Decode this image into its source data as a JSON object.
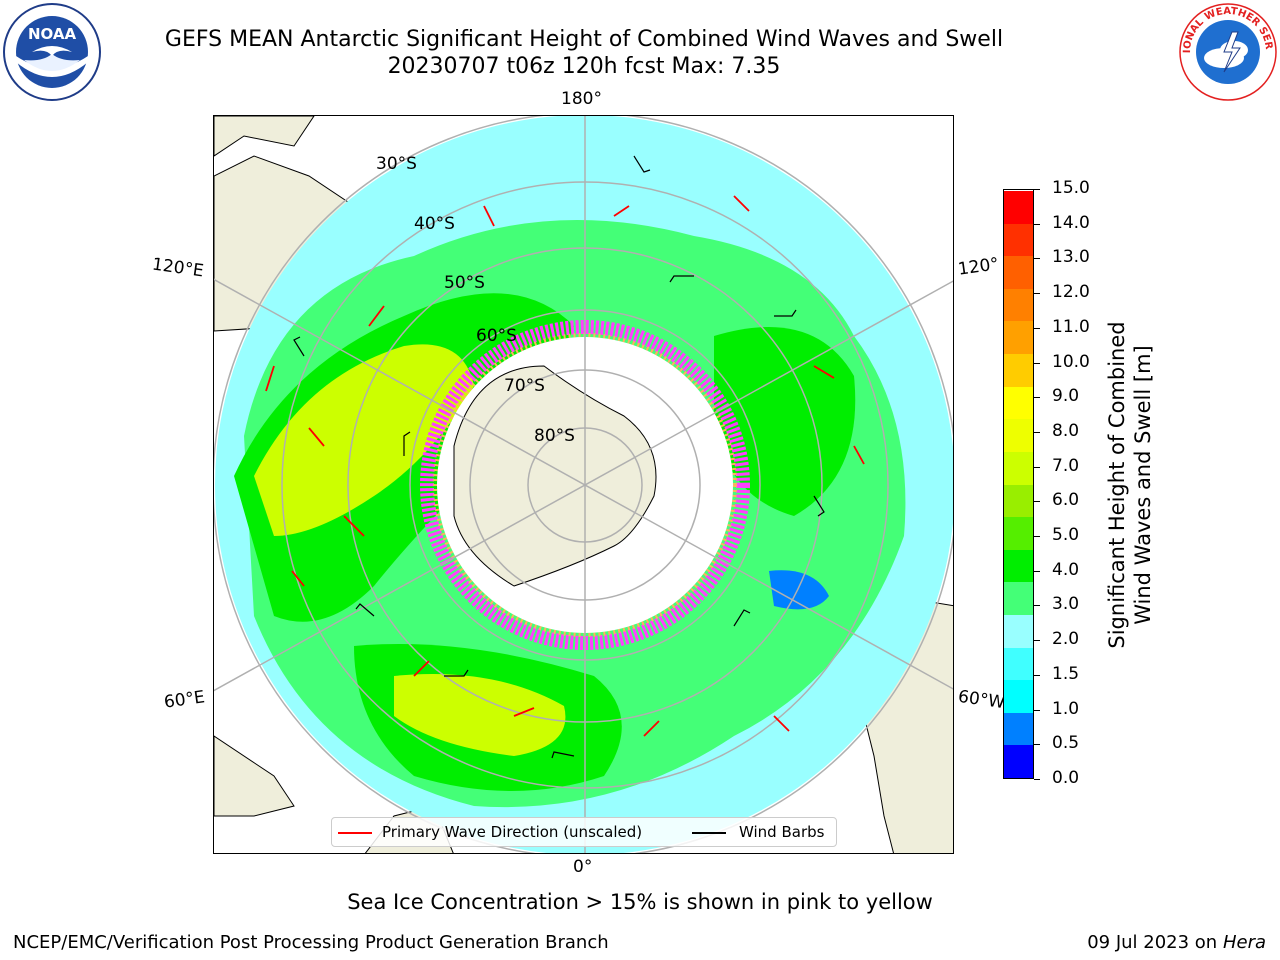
{
  "header": {
    "title_line1": "GEFS MEAN Antarctic Significant Height of Combined Wind Waves and Swell",
    "title_line2": "20230707 t06z 120h fcst   Max: 7.35"
  },
  "logos": {
    "noaa_text": "NOAA",
    "nws_text": "NATIONAL WEATHER SERVICE"
  },
  "map": {
    "longitude_labels": {
      "top": "180°",
      "bottom": "0°",
      "upper_left": "120°E",
      "lower_left": "60°E",
      "upper_right": "120°",
      "lower_right": "60°W"
    },
    "latitude_labels": [
      "30°S",
      "40°S",
      "50°S",
      "60°S",
      "70°S",
      "80°S"
    ],
    "colors": {
      "land": "#efeedb",
      "grid": "#b0b0b0",
      "wave_arrow": "#ff0000",
      "wind_barb": "#000000"
    }
  },
  "legend": {
    "wave_label": "Primary Wave Direction (unscaled)",
    "wind_label": "Wind Barbs"
  },
  "colorbar": {
    "label_line1": "Significant Height of Combined",
    "label_line2": "Wind Waves and Swell [m]",
    "ticks": [
      "15.0",
      "14.0",
      "13.0",
      "12.0",
      "11.0",
      "10.0",
      "9.0",
      "8.0",
      "7.0",
      "6.0",
      "5.0",
      "4.0",
      "3.0",
      "2.0",
      "1.5",
      "1.0",
      "0.5",
      "0.0"
    ],
    "colors_bottom_to_top": [
      "#0000ff",
      "#0080ff",
      "#00ffff",
      "#40ffff",
      "#99ffff",
      "#44ff77",
      "#00ee00",
      "#55ee00",
      "#99ee00",
      "#ccff00",
      "#eeff00",
      "#ffff00",
      "#ffcc00",
      "#ffa000",
      "#ff8000",
      "#ff6000",
      "#ff3000",
      "#ff0000"
    ]
  },
  "note": "Sea Ice Concentration > 15% is shown in pink to yellow",
  "footer": {
    "left": "NCEP/EMC/Verification Post Processing Product Generation Branch",
    "right_date": "09 Jul 2023 on ",
    "right_machine": "Hera"
  }
}
